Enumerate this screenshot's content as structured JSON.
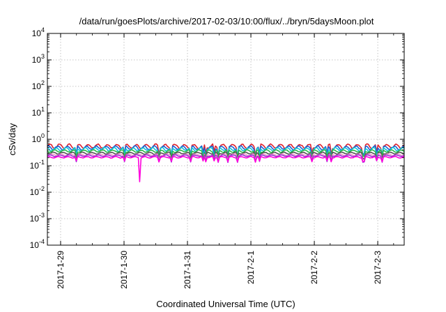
{
  "chart_data": {
    "type": "line",
    "title": "/data/run/goesPlots/archive/2017-02-03/10:00/flux/../bryn/5daysMoon.plot",
    "xlabel": "Coordinated Universal Time (UTC)",
    "ylabel": "cSv/day",
    "y_scale": "log",
    "ylim": [
      0.0001,
      10000
    ],
    "y_ticks": [
      {
        "value": 0.0001,
        "base": "10",
        "exp": "-4"
      },
      {
        "value": 0.001,
        "base": "10",
        "exp": "-3"
      },
      {
        "value": 0.01,
        "base": "10",
        "exp": "-2"
      },
      {
        "value": 0.1,
        "base": "10",
        "exp": "-1"
      },
      {
        "value": 1,
        "base": "10",
        "exp": "0"
      },
      {
        "value": 10,
        "base": "10",
        "exp": "1"
      },
      {
        "value": 100,
        "base": "10",
        "exp": "2"
      },
      {
        "value": 1000,
        "base": "10",
        "exp": "3"
      },
      {
        "value": 10000,
        "base": "10",
        "exp": "4"
      }
    ],
    "x_ticks": [
      "2017-1-29",
      "2017-1-30",
      "2017-1-31",
      "2017-2-1",
      "2017-2-2",
      "2017-2-3"
    ],
    "xlim": [
      "2017-01-28 19:00",
      "2017-02-03 10:00"
    ],
    "grid": true,
    "series": [
      {
        "color": "#e0202a",
        "level": 0.55,
        "amp": 0.18,
        "dip": 0.55
      },
      {
        "color": "#1a5fd6",
        "level": 0.48,
        "amp": 0.16,
        "dip": 0.55
      },
      {
        "color": "#10c8d8",
        "level": 0.42,
        "amp": 0.14,
        "dip": 0.55
      },
      {
        "color": "#2db84b",
        "level": 0.36,
        "amp": 0.1,
        "dip": 0.6
      },
      {
        "color": "#555555",
        "level": 0.3,
        "amp": 0.08,
        "dip": 0.6
      },
      {
        "color": "#f2a0c8",
        "level": 0.26,
        "amp": 0.07,
        "dip": 0.6
      },
      {
        "color": "#9a2bd6",
        "level": 0.24,
        "amp": 0.07,
        "dip": 0.6
      },
      {
        "color": "#ff00dd",
        "level": 0.21,
        "amp": 0.06,
        "dip": 0.7,
        "deep_dip": {
          "time": "2017-01-30 06:00",
          "value": 0.025
        }
      }
    ]
  }
}
